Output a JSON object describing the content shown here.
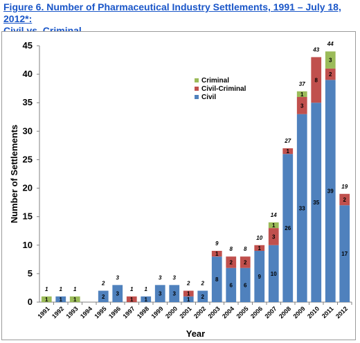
{
  "title_line1": "Figure 6. Number of Pharmaceutical Industry Settlements, 1991 – July 18, 2012*:",
  "title_line2": "Civil vs. Criminal",
  "chart_data": {
    "type": "bar",
    "stacked": true,
    "categories": [
      "1991",
      "1992",
      "1993",
      "1994",
      "1995",
      "1996",
      "1997",
      "1998",
      "1999",
      "2000",
      "2001",
      "2002",
      "2003",
      "2004",
      "2005",
      "2006",
      "2007",
      "2008",
      "2009",
      "2010",
      "2011",
      "2012"
    ],
    "series": [
      {
        "name": "Civil",
        "color": "#4f81bd",
        "values": [
          0,
          1,
          0,
          0,
          2,
          3,
          0,
          1,
          3,
          3,
          1,
          2,
          8,
          6,
          6,
          9,
          10,
          26,
          33,
          35,
          39,
          17
        ]
      },
      {
        "name": "Civil-Criminal",
        "color": "#c0504d",
        "values": [
          0,
          0,
          0,
          0,
          0,
          0,
          1,
          0,
          0,
          0,
          1,
          0,
          1,
          2,
          2,
          1,
          3,
          1,
          3,
          8,
          2,
          2
        ]
      },
      {
        "name": "Criminal",
        "color": "#9bbb59",
        "values": [
          1,
          0,
          1,
          0,
          0,
          0,
          0,
          0,
          0,
          0,
          0,
          0,
          0,
          0,
          0,
          0,
          1,
          0,
          1,
          0,
          3,
          0
        ]
      }
    ],
    "totals": [
      1,
      1,
      1,
      null,
      2,
      3,
      1,
      1,
      3,
      3,
      2,
      2,
      9,
      8,
      8,
      10,
      14,
      27,
      37,
      43,
      44,
      19
    ],
    "xlabel": "Year",
    "ylabel": "Number of Settlements",
    "ylim": [
      0,
      45
    ],
    "yticks": [
      0,
      5,
      10,
      15,
      20,
      25,
      30,
      35,
      40,
      45
    ],
    "legend_order": [
      "Criminal",
      "Civil-Criminal",
      "Civil"
    ],
    "legend_position": "upper-middle",
    "grid": false
  }
}
